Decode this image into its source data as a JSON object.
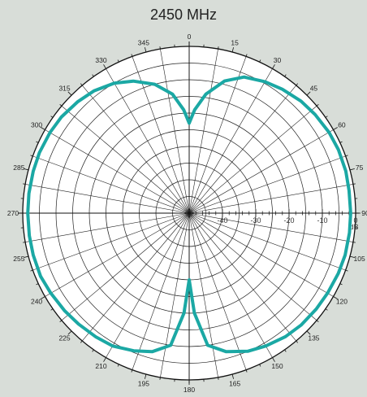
{
  "chart_data": {
    "type": "line",
    "subtype": "polar",
    "title": "2450 MHz",
    "radial_unit": "dB",
    "radial_range": [
      -50,
      0
    ],
    "radial_ticks": [
      -40,
      -30,
      -20,
      -10,
      0
    ],
    "angle_ticks": [
      0,
      15,
      30,
      45,
      60,
      75,
      90,
      105,
      120,
      135,
      150,
      165,
      180,
      195,
      210,
      225,
      240,
      255,
      270,
      285,
      300,
      315,
      330,
      345
    ],
    "angle_direction": "clockwise",
    "zero_angle_location": "top",
    "grid": true,
    "series_color": "#1ba8a4",
    "series": [
      {
        "angle": [
          0,
          3,
          8,
          15,
          22,
          30,
          37,
          45,
          52,
          60,
          67,
          75,
          82,
          90,
          97,
          105,
          112,
          120,
          127,
          135,
          142,
          150,
          157,
          165,
          172,
          177,
          180,
          183,
          188,
          195,
          202,
          210,
          217,
          225,
          232,
          240,
          247,
          255,
          262,
          270,
          277,
          285,
          292,
          300,
          307,
          315,
          322,
          330,
          337,
          345,
          352,
          357,
          360
        ],
        "values": [
          -23,
          -19,
          -14,
          -9,
          -6,
          -4.5,
          -3.5,
          -2.5,
          -2,
          -1.5,
          -1.3,
          -1.3,
          -1.5,
          -1.5,
          -1.5,
          -1.5,
          -1.7,
          -2,
          -2.2,
          -2.5,
          -3,
          -4,
          -5,
          -7,
          -10,
          -20,
          -30,
          -20,
          -10,
          -7,
          -5.5,
          -4,
          -3.5,
          -3,
          -2.5,
          -2,
          -1.5,
          -1.5,
          -1.5,
          -1.5,
          -1.5,
          -1.5,
          -1.5,
          -1.7,
          -2,
          -2.7,
          -3.5,
          -5,
          -7,
          -10,
          -14,
          -19,
          -23
        ]
      }
    ]
  }
}
